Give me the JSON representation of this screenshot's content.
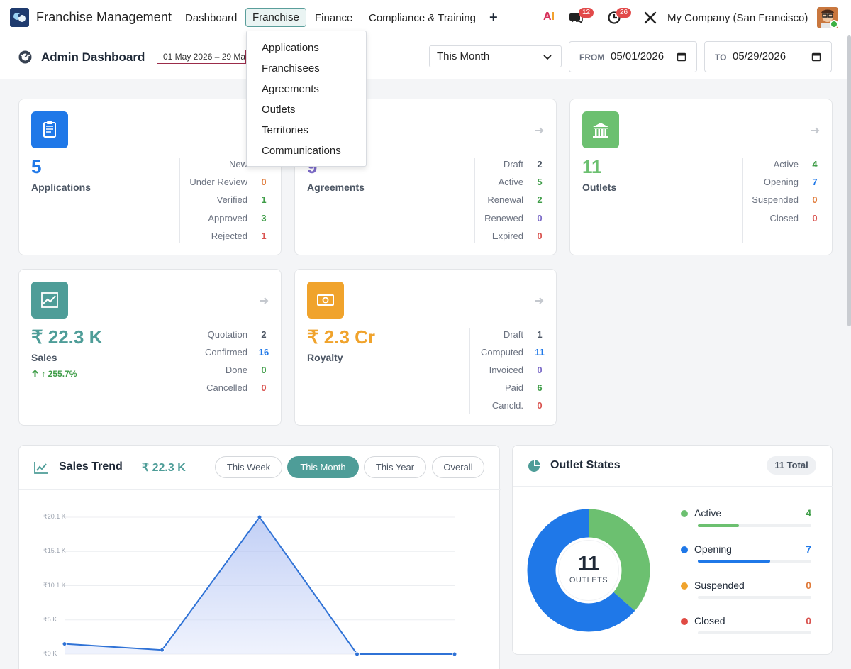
{
  "nav": {
    "app_title": "Franchise Management",
    "items": [
      "Dashboard",
      "Franchise",
      "Finance",
      "Compliance & Training"
    ],
    "active": "Franchise",
    "plus": "+",
    "ai_label_a": "A",
    "ai_label_i": "I",
    "chat_count": "12",
    "activity_count": "26",
    "company": "My Company (San Francisco)"
  },
  "franchise_menu": [
    "Applications",
    "Franchisees",
    "Agreements",
    "Outlets",
    "Territories",
    "Communications"
  ],
  "header": {
    "title": "Admin Dashboard",
    "date_range": "01 May 2026 – 29 May 2026",
    "period": "This Month",
    "from_label": "FROM",
    "from_value": "05/01/2026",
    "to_label": "TO",
    "to_value": "05/29/2026"
  },
  "cards": {
    "applications": {
      "count": "5",
      "label": "Applications",
      "stats": [
        {
          "label": "New",
          "value": "0"
        },
        {
          "label": "Under Review",
          "value": "0"
        },
        {
          "label": "Verified",
          "value": "1"
        },
        {
          "label": "Approved",
          "value": "3"
        },
        {
          "label": "Rejected",
          "value": "1"
        }
      ]
    },
    "agreements": {
      "count": "9",
      "label": "Agreements",
      "stats": [
        {
          "label": "Draft",
          "value": "2"
        },
        {
          "label": "Active",
          "value": "5"
        },
        {
          "label": "Renewal",
          "value": "2"
        },
        {
          "label": "Renewed",
          "value": "0"
        },
        {
          "label": "Expired",
          "value": "0"
        }
      ]
    },
    "outlets": {
      "count": "11",
      "label": "Outlets",
      "stats": [
        {
          "label": "Active",
          "value": "4"
        },
        {
          "label": "Opening",
          "value": "7"
        },
        {
          "label": "Suspended",
          "value": "0"
        },
        {
          "label": "Closed",
          "value": "0"
        }
      ]
    },
    "sales": {
      "count": "₹ 22.3 K",
      "label": "Sales",
      "trend": "↑ 255.7%",
      "stats": [
        {
          "label": "Quotation",
          "value": "2"
        },
        {
          "label": "Confirmed",
          "value": "16"
        },
        {
          "label": "Done",
          "value": "0"
        },
        {
          "label": "Cancelled",
          "value": "0"
        }
      ]
    },
    "royalty": {
      "count": "₹ 2.3 Cr",
      "label": "Royalty",
      "stats": [
        {
          "label": "Draft",
          "value": "1"
        },
        {
          "label": "Computed",
          "value": "11"
        },
        {
          "label": "Invoiced",
          "value": "0"
        },
        {
          "label": "Paid",
          "value": "6"
        },
        {
          "label": "Cancld.",
          "value": "0"
        }
      ]
    }
  },
  "sales_trend": {
    "title": "Sales Trend",
    "amount": "₹ 22.3 K",
    "tabs": [
      "This Week",
      "This Month",
      "This Year",
      "Overall"
    ],
    "active_tab": "This Month"
  },
  "outlet_states": {
    "title": "Outlet States",
    "total_chip": "11 Total",
    "center_value": "11",
    "center_label": "OUTLETS",
    "items": [
      {
        "name": "Active",
        "value": "4",
        "fraction": 0.364,
        "color": "#6cc070"
      },
      {
        "name": "Opening",
        "value": "7",
        "fraction": 0.636,
        "color": "#1f78e8"
      },
      {
        "name": "Suspended",
        "value": "0",
        "fraction": 0,
        "color": "#f0a32c"
      },
      {
        "name": "Closed",
        "value": "0",
        "fraction": 0,
        "color": "#e04a43"
      }
    ]
  },
  "chart_data": {
    "type": "area",
    "x": [
      1,
      2,
      3,
      4,
      5
    ],
    "values": [
      1500,
      600,
      20100,
      0,
      0
    ],
    "y_ticks": [
      "₹0 K",
      "₹5 K",
      "₹10.1 K",
      "₹15.1 K",
      "₹20.1 K"
    ],
    "ylim": [
      0,
      20100
    ],
    "line_color": "#2f72d6",
    "grid": true
  },
  "colors": {
    "accent": "#4e9d98",
    "blue": "#1f78e8",
    "green": "#6cc070",
    "orange": "#f0a32c",
    "red": "#d9534f",
    "purple": "#7b6ac7"
  }
}
